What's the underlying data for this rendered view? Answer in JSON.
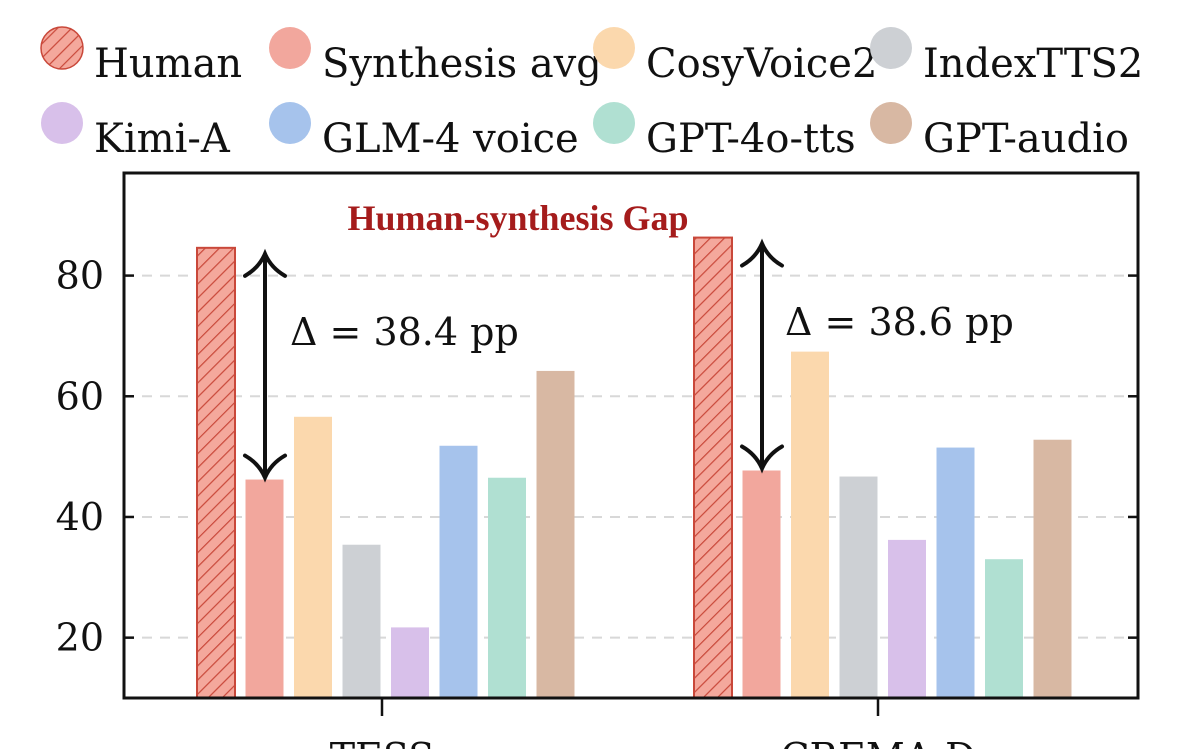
{
  "chart_data": {
    "type": "bar",
    "categories": [
      "TESS",
      "CREMA-D"
    ],
    "series": [
      {
        "name": "Human",
        "values": [
          84.6,
          86.3
        ],
        "color": "#e8776a",
        "pattern": "hatch"
      },
      {
        "name": "Synthesis avg",
        "values": [
          46.2,
          47.7
        ],
        "color": "#f2a79d"
      },
      {
        "name": "CosyVoice2",
        "values": [
          56.6,
          67.4
        ],
        "color": "#fbd8ad"
      },
      {
        "name": "IndexTTS2",
        "values": [
          35.4,
          46.7
        ],
        "color": "#cdd0d4"
      },
      {
        "name": "Kimi-A",
        "values": [
          21.7,
          36.2
        ],
        "color": "#d8c0ea"
      },
      {
        "name": "GLM-4 voice",
        "values": [
          51.8,
          51.5
        ],
        "color": "#a6c3ec"
      },
      {
        "name": "GPT-4o-tts",
        "values": [
          46.5,
          33.0
        ],
        "color": "#b0e0d2"
      },
      {
        "name": "GPT-audio",
        "values": [
          64.2,
          52.8
        ],
        "color": "#d8b8a3"
      }
    ],
    "ylim": [
      10,
      97
    ],
    "yticks": [
      20,
      40,
      60,
      80
    ],
    "ytick_labels": [
      "20",
      "40",
      "60",
      "80"
    ],
    "grid": "horizontal dashed",
    "legend": "top",
    "title": "",
    "xlabel": "",
    "ylabel": "",
    "annotations": {
      "title": "Human-synthesis Gap",
      "deltas": [
        "Δ = 38.4 pp",
        "Δ = 38.6 pp"
      ]
    }
  }
}
